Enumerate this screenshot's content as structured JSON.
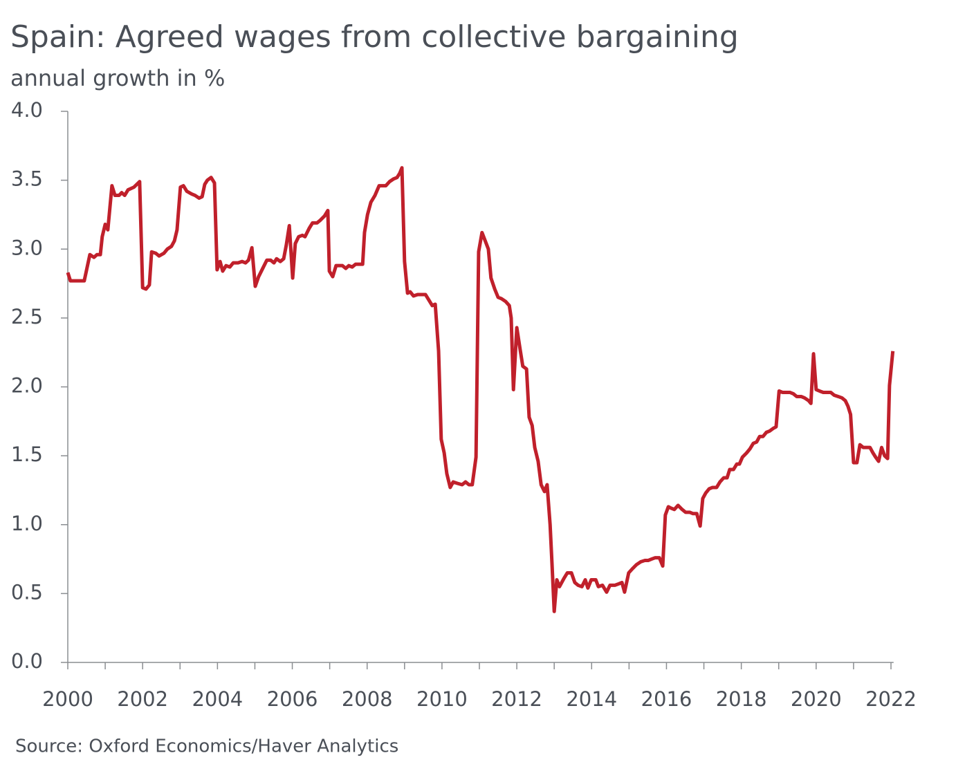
{
  "chart_data": {
    "type": "line",
    "title": "Spain: Agreed wages from collective bargaining",
    "subtitle": "annual growth in %",
    "source": "Source: Oxford Economics/Haver Analytics",
    "color": "#c0202b",
    "x": [
      2000.0,
      2000.07,
      2000.44,
      2000.59,
      2000.7,
      2000.78,
      2000.87,
      2000.92,
      2001.0,
      2001.07,
      2001.18,
      2001.26,
      2001.37,
      2001.44,
      2001.52,
      2001.61,
      2001.77,
      2001.92,
      2002.0,
      2002.09,
      2002.18,
      2002.24,
      2002.35,
      2002.44,
      2002.57,
      2002.66,
      2002.77,
      2002.85,
      2002.92,
      2003.01,
      2003.09,
      2003.18,
      2003.31,
      2003.4,
      2003.51,
      2003.59,
      2003.66,
      2003.73,
      2003.83,
      2003.92,
      2003.99,
      2004.07,
      2004.14,
      2004.23,
      2004.33,
      2004.42,
      2004.55,
      2004.66,
      2004.75,
      2004.83,
      2004.92,
      2005.01,
      2005.1,
      2005.21,
      2005.32,
      2005.42,
      2005.51,
      2005.58,
      2005.68,
      2005.77,
      2005.84,
      2005.92,
      2006.01,
      2006.08,
      2006.17,
      2006.27,
      2006.34,
      2006.45,
      2006.54,
      2006.66,
      2006.75,
      2006.86,
      2006.95,
      2006.99,
      2007.08,
      2007.17,
      2007.34,
      2007.43,
      2007.51,
      2007.6,
      2007.69,
      2007.8,
      2007.88,
      2007.93,
      2008.01,
      2008.1,
      2008.21,
      2008.32,
      2008.41,
      2008.5,
      2008.6,
      2008.71,
      2008.8,
      2008.87,
      2008.93,
      2009.0,
      2009.08,
      2009.15,
      2009.24,
      2009.35,
      2009.45,
      2009.56,
      2009.65,
      2009.74,
      2009.82,
      2009.91,
      2009.98,
      2010.06,
      2010.13,
      2010.22,
      2010.3,
      2010.41,
      2010.54,
      2010.63,
      2010.72,
      2010.81,
      2010.91,
      2010.98,
      2011.07,
      2011.17,
      2011.24,
      2011.31,
      2011.41,
      2011.5,
      2011.59,
      2011.7,
      2011.8,
      2011.85,
      2011.91,
      2012.0,
      2012.09,
      2012.16,
      2012.26,
      2012.33,
      2012.41,
      2012.48,
      2012.57,
      2012.65,
      2012.74,
      2012.81,
      2012.89,
      2012.94,
      2013.0,
      2013.07,
      2013.14,
      2013.26,
      2013.35,
      2013.46,
      2013.55,
      2013.64,
      2013.74,
      2013.83,
      2013.9,
      2013.99,
      2014.11,
      2014.18,
      2014.29,
      2014.4,
      2014.49,
      2014.62,
      2014.72,
      2014.81,
      2014.88,
      2014.99,
      2015.09,
      2015.2,
      2015.31,
      2015.42,
      2015.51,
      2015.6,
      2015.7,
      2015.81,
      2015.9,
      2015.97,
      2016.05,
      2016.12,
      2016.21,
      2016.31,
      2016.42,
      2016.51,
      2016.62,
      2016.71,
      2016.81,
      2016.9,
      2016.97,
      2017.05,
      2017.14,
      2017.23,
      2017.34,
      2017.43,
      2017.53,
      2017.62,
      2017.69,
      2017.79,
      2017.88,
      2017.95,
      2018.03,
      2018.14,
      2018.23,
      2018.32,
      2018.41,
      2018.49,
      2018.58,
      2018.67,
      2018.76,
      2018.86,
      2018.93,
      2019.01,
      2019.1,
      2019.21,
      2019.3,
      2019.39,
      2019.48,
      2019.6,
      2019.69,
      2019.8,
      2019.86,
      2019.93,
      2020.0,
      2020.09,
      2020.19,
      2020.3,
      2020.39,
      2020.48,
      2020.59,
      2020.69,
      2020.78,
      2020.85,
      2020.92,
      2021.0,
      2021.09,
      2021.17,
      2021.26,
      2021.35,
      2021.44,
      2021.52,
      2021.59,
      2021.67,
      2021.75,
      2021.83,
      2021.91,
      2021.96,
      2022.05
    ],
    "values": [
      2.83,
      2.77,
      2.77,
      2.96,
      2.94,
      2.96,
      2.96,
      3.09,
      3.18,
      3.14,
      3.46,
      3.39,
      3.39,
      3.41,
      3.39,
      3.43,
      3.45,
      3.49,
      2.72,
      2.71,
      2.74,
      2.98,
      2.97,
      2.95,
      2.97,
      3.0,
      3.02,
      3.06,
      3.14,
      3.45,
      3.46,
      3.42,
      3.4,
      3.39,
      3.37,
      3.38,
      3.47,
      3.5,
      3.52,
      3.48,
      2.85,
      2.91,
      2.84,
      2.88,
      2.87,
      2.9,
      2.9,
      2.91,
      2.9,
      2.92,
      3.01,
      2.73,
      2.8,
      2.86,
      2.92,
      2.92,
      2.9,
      2.93,
      2.91,
      2.93,
      3.03,
      3.17,
      2.79,
      3.04,
      3.09,
      3.1,
      3.09,
      3.15,
      3.19,
      3.19,
      3.21,
      3.24,
      3.28,
      2.84,
      2.8,
      2.88,
      2.88,
      2.86,
      2.88,
      2.87,
      2.89,
      2.89,
      2.89,
      3.12,
      3.25,
      3.34,
      3.39,
      3.46,
      3.46,
      3.46,
      3.49,
      3.51,
      3.52,
      3.55,
      3.59,
      2.91,
      2.68,
      2.69,
      2.66,
      2.67,
      2.67,
      2.67,
      2.63,
      2.59,
      2.6,
      2.26,
      1.62,
      1.52,
      1.37,
      1.27,
      1.31,
      1.3,
      1.29,
      1.31,
      1.29,
      1.29,
      1.49,
      2.98,
      3.12,
      3.05,
      3.0,
      2.79,
      2.71,
      2.65,
      2.64,
      2.62,
      2.59,
      2.5,
      1.98,
      2.43,
      2.27,
      2.15,
      2.13,
      1.78,
      1.72,
      1.56,
      1.46,
      1.29,
      1.24,
      1.29,
      1.0,
      0.72,
      0.37,
      0.6,
      0.55,
      0.61,
      0.65,
      0.65,
      0.58,
      0.56,
      0.55,
      0.6,
      0.54,
      0.6,
      0.6,
      0.55,
      0.56,
      0.51,
      0.56,
      0.56,
      0.57,
      0.58,
      0.51,
      0.65,
      0.68,
      0.71,
      0.73,
      0.74,
      0.74,
      0.75,
      0.76,
      0.76,
      0.7,
      1.07,
      1.13,
      1.12,
      1.11,
      1.14,
      1.11,
      1.09,
      1.09,
      1.08,
      1.08,
      0.99,
      1.19,
      1.23,
      1.26,
      1.27,
      1.27,
      1.31,
      1.34,
      1.34,
      1.4,
      1.4,
      1.44,
      1.44,
      1.49,
      1.52,
      1.55,
      1.59,
      1.6,
      1.64,
      1.64,
      1.67,
      1.68,
      1.7,
      1.71,
      1.97,
      1.96,
      1.96,
      1.96,
      1.95,
      1.93,
      1.93,
      1.92,
      1.9,
      1.88,
      2.24,
      1.98,
      1.97,
      1.96,
      1.96,
      1.96,
      1.94,
      1.93,
      1.92,
      1.9,
      1.86,
      1.8,
      1.45,
      1.45,
      1.58,
      1.56,
      1.56,
      1.56,
      1.52,
      1.49,
      1.46,
      1.56,
      1.5,
      1.48,
      2.01,
      2.26
    ],
    "xlim": [
      2000,
      2022.07
    ],
    "xticks": [
      2000,
      2002,
      2004,
      2006,
      2008,
      2010,
      2012,
      2014,
      2016,
      2018,
      2020,
      2022
    ],
    "xminorticks": [
      2001,
      2003,
      2005,
      2007,
      2009,
      2011,
      2013,
      2015,
      2017,
      2019,
      2021
    ],
    "ylim": [
      0,
      4
    ],
    "yticks": [
      {
        "value": 0,
        "label": "0.0"
      },
      0.5,
      {
        "value": 1,
        "label": "1.0"
      },
      1.5,
      {
        "value": 2,
        "label": "2.0"
      },
      2.5,
      {
        "value": 3,
        "label": "3.0"
      },
      3.5,
      {
        "value": 4,
        "label": "4.0"
      }
    ]
  }
}
